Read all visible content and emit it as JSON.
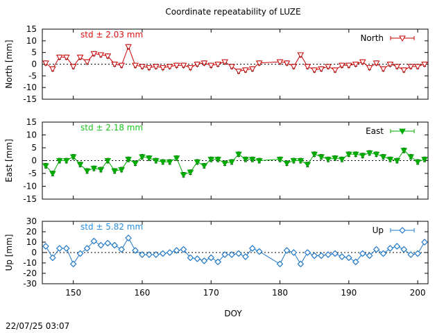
{
  "title": "Coordinate repeatability of LUZE",
  "xlabel": "DOY",
  "timestamp": "22/07/25 03:07",
  "chart_data": [
    {
      "type": "line",
      "panel": "north",
      "ylabel": "North [mm]",
      "legend": "North",
      "stats_label": "std ± 2.03 mm",
      "color": "#cc0000",
      "stats_color": "#e01010",
      "marker": "triangle-down-open",
      "xlim": [
        145.5,
        201.5
      ],
      "ylim": [
        -15,
        15
      ],
      "yticks": [
        -15,
        -10,
        -5,
        0,
        5,
        10,
        15
      ],
      "xticks": [
        150,
        160,
        170,
        180,
        190,
        200
      ],
      "x": [
        146,
        147,
        148,
        149,
        150,
        151,
        152,
        153,
        154,
        155,
        156,
        157,
        158,
        159,
        160,
        161,
        162,
        163,
        164,
        165,
        166,
        167,
        168,
        169,
        170,
        171,
        172,
        173,
        174,
        175,
        176,
        177,
        180,
        181,
        182,
        183,
        184,
        185,
        186,
        187,
        188,
        189,
        190,
        191,
        192,
        193,
        194,
        195,
        196,
        197,
        198,
        199,
        200,
        201
      ],
      "y": [
        0.5,
        -2,
        3,
        3,
        -1,
        3,
        1,
        4.5,
        4,
        3.5,
        0,
        -0.5,
        7.5,
        -0.5,
        -1,
        -1.5,
        -1,
        -1.5,
        -1,
        -0.5,
        -0.5,
        -1.5,
        0,
        0.5,
        -0.5,
        0,
        1,
        -1,
        -3,
        -2.5,
        -2,
        0.5,
        1,
        0.5,
        -1,
        4,
        -1,
        -2.5,
        -2,
        -1,
        -2.5,
        -0.5,
        -0.5,
        0,
        1,
        -1.5,
        0.5,
        -2,
        0,
        -1,
        -2.5,
        -1,
        -1,
        0
      ]
    },
    {
      "type": "line",
      "panel": "east",
      "ylabel": "East [mm]",
      "legend": "East",
      "stats_label": "std ± 2.18 mm",
      "color": "#00aa00",
      "stats_color": "#1cc41c",
      "marker": "triangle-down-filled",
      "xlim": [
        145.5,
        201.5
      ],
      "ylim": [
        -15,
        15
      ],
      "yticks": [
        -15,
        -10,
        -5,
        0,
        5,
        10,
        15
      ],
      "xticks": [
        150,
        160,
        170,
        180,
        190,
        200
      ],
      "x": [
        146,
        147,
        148,
        149,
        150,
        151,
        152,
        153,
        154,
        155,
        156,
        157,
        158,
        159,
        160,
        161,
        162,
        163,
        164,
        165,
        166,
        167,
        168,
        169,
        170,
        171,
        172,
        173,
        174,
        175,
        176,
        177,
        180,
        181,
        182,
        183,
        184,
        185,
        186,
        187,
        188,
        189,
        190,
        191,
        192,
        193,
        194,
        195,
        196,
        197,
        198,
        199,
        200,
        201
      ],
      "y": [
        -2,
        -5,
        0,
        0,
        1.5,
        -1.5,
        -4,
        -3,
        -3.5,
        0,
        -4,
        -3.5,
        0.5,
        -1,
        1.5,
        1,
        0,
        -0.5,
        -0.5,
        1,
        -5.5,
        -4.5,
        -0.5,
        -2,
        0.5,
        0.5,
        -1,
        -0.5,
        2.5,
        0.5,
        0.5,
        0,
        0.5,
        -1,
        0,
        0,
        -1.5,
        2.5,
        1.5,
        0.5,
        1,
        0.5,
        2.5,
        2.5,
        2,
        3,
        2.5,
        1.5,
        0.5,
        0,
        4,
        1.5,
        -0.5,
        0.5
      ]
    },
    {
      "type": "line",
      "panel": "up",
      "ylabel": "Up [mm]",
      "legend": "Up",
      "stats_label": "std ± 5.82 mm",
      "color": "#1f78c8",
      "stats_color": "#2a8fe0",
      "marker": "diamond-open",
      "xlim": [
        145.5,
        201.5
      ],
      "ylim": [
        -30,
        30
      ],
      "yticks": [
        -30,
        -20,
        -10,
        0,
        10,
        20,
        30
      ],
      "xticks": [
        150,
        160,
        170,
        180,
        190,
        200
      ],
      "x": [
        146,
        147,
        148,
        149,
        150,
        151,
        152,
        153,
        154,
        155,
        156,
        157,
        158,
        159,
        160,
        161,
        162,
        163,
        164,
        165,
        166,
        167,
        168,
        169,
        170,
        171,
        172,
        173,
        174,
        175,
        176,
        177,
        180,
        181,
        182,
        183,
        184,
        185,
        186,
        187,
        188,
        189,
        190,
        191,
        192,
        193,
        194,
        195,
        196,
        197,
        198,
        199,
        200,
        201
      ],
      "y": [
        6,
        -5,
        4,
        4,
        -11,
        -1,
        4,
        11,
        7,
        9,
        7,
        3,
        14,
        2,
        -2,
        -2,
        -2,
        -1,
        0,
        2,
        3,
        -5,
        -6,
        -8,
        -5,
        -9,
        -2,
        -2,
        -1,
        -4,
        4,
        1,
        -11,
        2,
        0,
        -11,
        0,
        -3,
        -3,
        -2,
        -1,
        -4,
        -5,
        -9,
        -1,
        -3,
        3,
        -1,
        4,
        6,
        3,
        -2,
        -1,
        10
      ]
    }
  ]
}
